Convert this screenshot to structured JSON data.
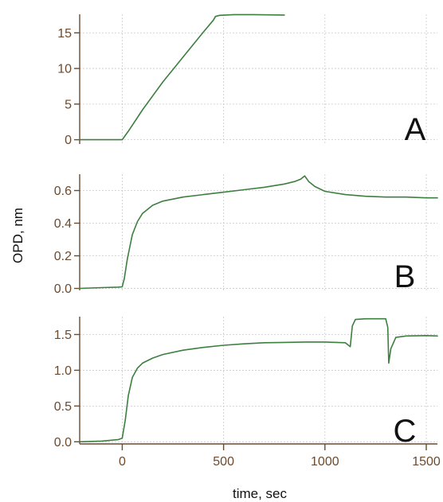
{
  "chart_data": [
    {
      "type": "line",
      "panel_label": "A",
      "xlabel": "time, sec",
      "ylabel": "OPD, nm",
      "xlim": [
        -210,
        1555
      ],
      "ylim": [
        -0.6,
        17.6
      ],
      "yticks": [
        0,
        5,
        10,
        15
      ],
      "ytick_labels": [
        "0",
        "5",
        "10",
        "15"
      ],
      "grid": true,
      "series": [
        {
          "x": [
            -210,
            -100,
            0,
            30,
            100,
            200,
            300,
            400,
            450,
            460,
            480,
            550,
            650,
            800
          ],
          "y": [
            0,
            0,
            0,
            1.2,
            4.2,
            8.1,
            11.6,
            15.1,
            16.8,
            17.3,
            17.45,
            17.55,
            17.55,
            17.5
          ]
        }
      ]
    },
    {
      "type": "line",
      "panel_label": "B",
      "xlabel": "time, sec",
      "ylabel": "OPD, nm",
      "xlim": [
        -210,
        1555
      ],
      "ylim": [
        -0.012,
        0.7
      ],
      "yticks": [
        0.0,
        0.2,
        0.4,
        0.6
      ],
      "ytick_labels": [
        "0.0",
        "0.2",
        "0.4",
        "0.6"
      ],
      "grid": true,
      "series": [
        {
          "x": [
            -210,
            -100,
            -20,
            0,
            10,
            25,
            50,
            75,
            100,
            150,
            200,
            300,
            400,
            500,
            600,
            700,
            800,
            850,
            880,
            900,
            920,
            950,
            1000,
            1100,
            1200,
            1300,
            1400,
            1500,
            1555
          ],
          "y": [
            0,
            0.005,
            0.008,
            0.01,
            0.06,
            0.18,
            0.33,
            0.41,
            0.46,
            0.51,
            0.535,
            0.56,
            0.575,
            0.59,
            0.605,
            0.62,
            0.64,
            0.655,
            0.67,
            0.69,
            0.655,
            0.625,
            0.595,
            0.575,
            0.565,
            0.56,
            0.56,
            0.555,
            0.555
          ]
        }
      ]
    },
    {
      "type": "line",
      "panel_label": "C",
      "xlabel": "time, sec",
      "ylabel": "OPD, nm",
      "xlim": [
        -210,
        1555
      ],
      "ylim": [
        -0.03,
        1.75
      ],
      "yticks": [
        0.0,
        0.5,
        1.0,
        1.5
      ],
      "ytick_labels": [
        "0.0",
        "0.5",
        "1.0",
        "1.5"
      ],
      "xticks": [
        0,
        500,
        1000,
        1500
      ],
      "xtick_labels": [
        "0",
        "500",
        "1000",
        "1500"
      ],
      "grid": true,
      "series": [
        {
          "x": [
            -210,
            -100,
            -20,
            0,
            15,
            30,
            50,
            75,
            100,
            150,
            200,
            300,
            400,
            500,
            600,
            700,
            800,
            900,
            1000,
            1100,
            1125,
            1135,
            1150,
            1200,
            1250,
            1300,
            1310,
            1315,
            1325,
            1350,
            1400,
            1500,
            1555
          ],
          "y": [
            0,
            0.01,
            0.03,
            0.05,
            0.3,
            0.65,
            0.9,
            1.03,
            1.1,
            1.17,
            1.22,
            1.28,
            1.32,
            1.35,
            1.37,
            1.385,
            1.39,
            1.395,
            1.395,
            1.385,
            1.33,
            1.62,
            1.71,
            1.72,
            1.72,
            1.72,
            1.6,
            1.1,
            1.3,
            1.46,
            1.48,
            1.485,
            1.48
          ]
        }
      ]
    }
  ]
}
